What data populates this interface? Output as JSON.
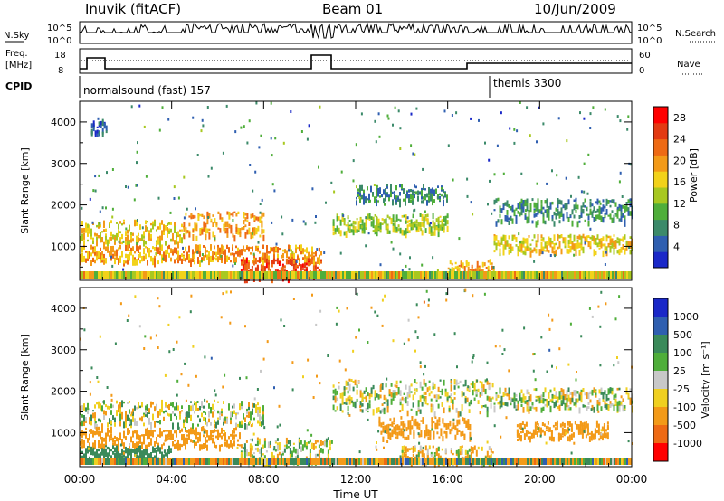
{
  "header": {
    "station": "Inuvik (fitACF)",
    "beam": "Beam 01",
    "date": "10/Jun/2009"
  },
  "top_panels": {
    "nsky_label": "N.Sky",
    "nsky_ticks": [
      "10^5",
      "10^0"
    ],
    "nsearch_label": "N.Search",
    "freq_label_1": "Freq.",
    "freq_label_2": "[MHz]",
    "freq_ticks": [
      "18",
      "8"
    ],
    "nave_label": "Nave",
    "nave_ticks": [
      "60",
      "0"
    ],
    "cpid_label": "CPID",
    "cpid_segments": [
      {
        "label": "normalsound (fast) 157",
        "start_hour": 0
      },
      {
        "label": "themis 3300",
        "start_hour": 18
      }
    ]
  },
  "chart_data": [
    {
      "type": "heatmap",
      "name": "power",
      "ylabel": "Slant Range [km]",
      "yticks": [
        1000,
        2000,
        3000,
        4000
      ],
      "ylim": [
        180,
        4500
      ],
      "xlim": [
        0,
        24
      ],
      "colorbar_label": "Power [dB]",
      "colorbar_ticks": [
        4,
        8,
        12,
        16,
        20,
        24,
        28
      ],
      "colorbar_colors": [
        "#1a28c8",
        "#2f5fb0",
        "#3c8a6a",
        "#4fae3a",
        "#a8c820",
        "#f2d21a",
        "#f39a18",
        "#ee6a14",
        "#e33a12",
        "#ff0000"
      ],
      "bands": [
        {
          "x": [
            0,
            4.5
          ],
          "y": [
            1100,
            1650
          ],
          "value": 16
        },
        {
          "x": [
            4.5,
            8
          ],
          "y": [
            1250,
            1850
          ],
          "value": 20
        },
        {
          "x": [
            0,
            10.5
          ],
          "y": [
            650,
            1050
          ],
          "value": 20
        },
        {
          "x": [
            7,
            10.5
          ],
          "y": [
            250,
            750
          ],
          "value": 28
        },
        {
          "x": [
            11,
            16
          ],
          "y": [
            1350,
            1800
          ],
          "value": 12
        },
        {
          "x": [
            12,
            16
          ],
          "y": [
            2100,
            2500
          ],
          "value": 8
        },
        {
          "x": [
            16,
            18
          ],
          "y": [
            350,
            700
          ],
          "value": 20
        },
        {
          "x": [
            18,
            24
          ],
          "y": [
            900,
            1300
          ],
          "value": 16
        },
        {
          "x": [
            18,
            24
          ],
          "y": [
            1600,
            2200
          ],
          "value": 8
        },
        {
          "x": [
            0.5,
            1.2
          ],
          "y": [
            3700,
            4100
          ],
          "value": 4
        }
      ]
    },
    {
      "type": "heatmap",
      "name": "velocity",
      "xlabel": "Time UT",
      "ylabel": "Slant Range [km]",
      "yticks": [
        1000,
        2000,
        3000,
        4000
      ],
      "ylim": [
        180,
        4500
      ],
      "xlim": [
        0,
        24
      ],
      "xticks": [
        "00:00",
        "04:00",
        "08:00",
        "12:00",
        "16:00",
        "20:00",
        "00:00"
      ],
      "colorbar_label": "Velocity [m s⁻¹]",
      "colorbar_ticks": [
        1000,
        500,
        100,
        25,
        -25,
        -100,
        -500,
        -1000
      ],
      "colorbar_colors": [
        "#1a28c8",
        "#2f5fb0",
        "#3a8a5a",
        "#4fae3a",
        "#c8c8c8",
        "#f0d020",
        "#f39a18",
        "#ee6a14",
        "#ff0000"
      ],
      "bands": [
        {
          "x": [
            0,
            8
          ],
          "y": [
            1200,
            1800
          ],
          "value": 0
        },
        {
          "x": [
            0,
            7
          ],
          "y": [
            700,
            1150
          ],
          "value": -300
        },
        {
          "x": [
            0,
            4
          ],
          "y": [
            400,
            700
          ],
          "value": 300
        },
        {
          "x": [
            7,
            11
          ],
          "y": [
            250,
            900
          ],
          "value": 0
        },
        {
          "x": [
            11,
            18
          ],
          "y": [
            1500,
            2300
          ],
          "value": 0
        },
        {
          "x": [
            14,
            18
          ],
          "y": [
            300,
            700
          ],
          "value": -100
        },
        {
          "x": [
            13,
            17
          ],
          "y": [
            900,
            1400
          ],
          "value": -300
        },
        {
          "x": [
            19,
            23
          ],
          "y": [
            900,
            1300
          ],
          "value": -300
        },
        {
          "x": [
            18,
            24
          ],
          "y": [
            1600,
            2100
          ],
          "value": 0
        }
      ]
    }
  ]
}
